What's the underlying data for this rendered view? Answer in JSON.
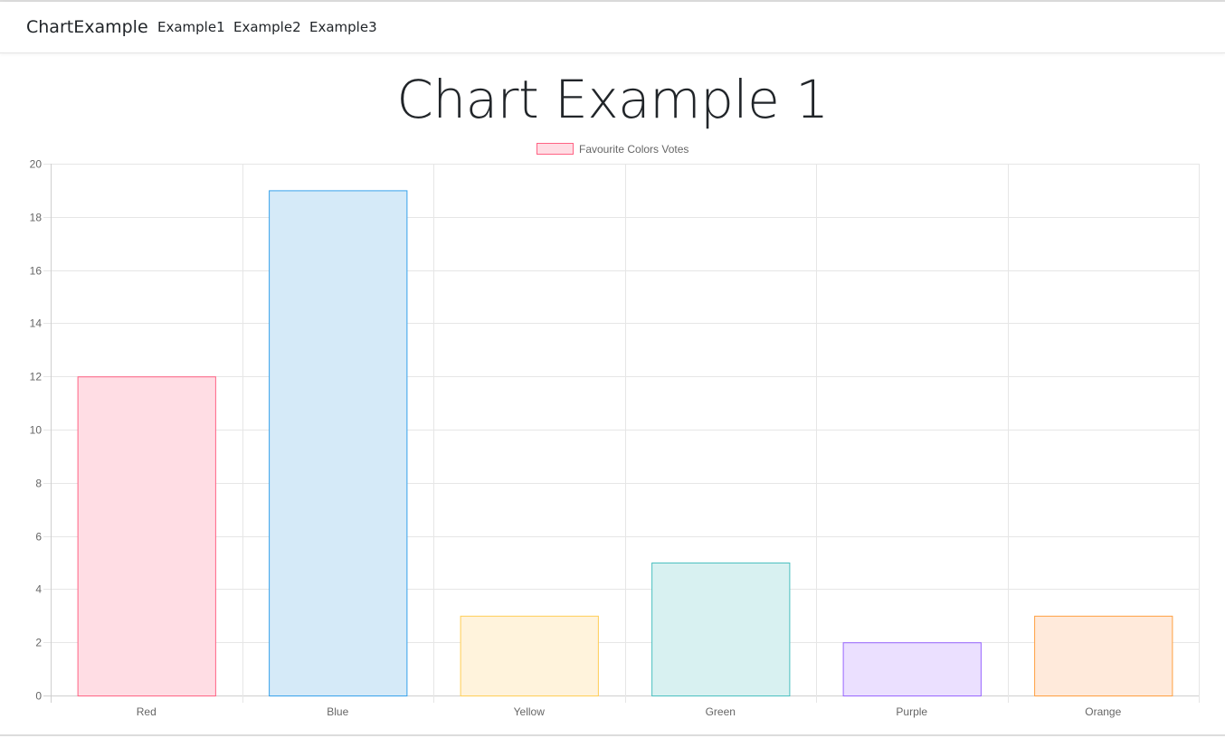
{
  "navbar": {
    "brand": "ChartExample",
    "links": [
      "Example1",
      "Example2",
      "Example3"
    ]
  },
  "page": {
    "title": "Chart Example 1"
  },
  "chart_data": {
    "type": "bar",
    "categories": [
      "Red",
      "Blue",
      "Yellow",
      "Green",
      "Purple",
      "Orange"
    ],
    "series": [
      {
        "name": "Favourite Colors Votes",
        "values": [
          12,
          19,
          3,
          5,
          2,
          3
        ]
      }
    ],
    "fill_colors": [
      "#ffdde4",
      "#d5eaf8",
      "#fff3dc",
      "#d8f1f1",
      "#ebe0ff",
      "#ffeadb"
    ],
    "border_colors": [
      "#ff6384",
      "#36a2eb",
      "#ffce56",
      "#4bc0c0",
      "#9966ff",
      "#ff9f40"
    ],
    "yticks": [
      "0",
      "2",
      "4",
      "6",
      "8",
      "10",
      "12",
      "14",
      "16",
      "18",
      "20"
    ],
    "ylim": [
      0,
      20
    ],
    "legend_position": "top-center",
    "grid": true,
    "legend_fill": "#ffdde4",
    "legend_border": "#ff6384"
  }
}
